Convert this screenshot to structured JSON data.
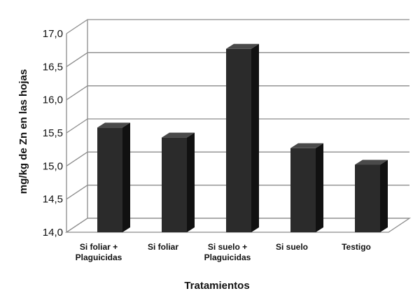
{
  "chart_data": {
    "type": "bar",
    "style": "3d-column",
    "categories": [
      [
        "Si foliar +",
        "Plaguicidas"
      ],
      [
        "Si foliar"
      ],
      [
        "Si suelo +",
        "Plaguicidas"
      ],
      [
        "Si suelo"
      ],
      [
        "Testigo"
      ]
    ],
    "values": [
      15.58,
      15.43,
      16.77,
      15.27,
      15.02
    ],
    "xlabel": "Tratamientos",
    "ylabel": "mg/kg de Zn en las hojas",
    "ylim": [
      14.0,
      17.0
    ],
    "yticks": [
      "14,0",
      "14,5",
      "15,0",
      "15,5",
      "16,0",
      "16,5",
      "17,0"
    ],
    "grid": true,
    "colors": {
      "bar_front": "#2b2b2b",
      "bar_side": "#111111",
      "bar_top": "#4a4a4a",
      "grid": "#8c8c8c"
    }
  }
}
